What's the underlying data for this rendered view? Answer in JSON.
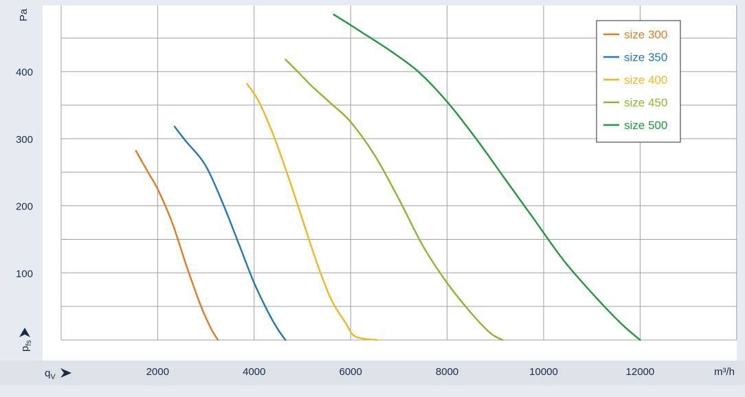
{
  "chart_data": {
    "type": "line",
    "xlabel": "q",
    "xlabel_sub": "V",
    "ylabel": "p",
    "ylabel_sub": "fs",
    "x_unit": "m³/h",
    "y_unit": "Pa",
    "xlim": [
      0,
      12000
    ],
    "ylim": [
      0,
      490
    ],
    "x_ticks": [
      2000,
      4000,
      6000,
      8000,
      10000,
      12000
    ],
    "y_ticks": [
      100,
      200,
      300,
      400
    ],
    "x_grid_step": 2000,
    "y_grid_step": 50,
    "grid": true,
    "legend_position": "top-right",
    "series": [
      {
        "name": "size 300",
        "color": "#e07b24",
        "points": [
          [
            1550,
            282
          ],
          [
            1800,
            250
          ],
          [
            2000,
            225
          ],
          [
            2300,
            175
          ],
          [
            2600,
            110
          ],
          [
            2900,
            50
          ],
          [
            3100,
            18
          ],
          [
            3250,
            0
          ]
        ]
      },
      {
        "name": "size 350",
        "color": "#1f77c0",
        "points": [
          [
            2350,
            318
          ],
          [
            2600,
            295
          ],
          [
            2900,
            270
          ],
          [
            3100,
            245
          ],
          [
            3400,
            195
          ],
          [
            3700,
            140
          ],
          [
            4000,
            85
          ],
          [
            4300,
            40
          ],
          [
            4500,
            15
          ],
          [
            4650,
            0
          ]
        ]
      },
      {
        "name": "size 400",
        "color": "#f5b51e",
        "points": [
          [
            3850,
            382
          ],
          [
            4100,
            355
          ],
          [
            4400,
            305
          ],
          [
            4700,
            245
          ],
          [
            5000,
            180
          ],
          [
            5300,
            115
          ],
          [
            5600,
            60
          ],
          [
            5900,
            25
          ],
          [
            6100,
            5
          ],
          [
            6550,
            0
          ]
        ]
      },
      {
        "name": "size 450",
        "color": "#8db52d",
        "points": [
          [
            4650,
            418
          ],
          [
            4900,
            400
          ],
          [
            5200,
            378
          ],
          [
            5600,
            352
          ],
          [
            6000,
            325
          ],
          [
            6500,
            275
          ],
          [
            7000,
            210
          ],
          [
            7500,
            140
          ],
          [
            8000,
            85
          ],
          [
            8500,
            40
          ],
          [
            8900,
            10
          ],
          [
            9150,
            0
          ]
        ]
      },
      {
        "name": "size 500",
        "color": "#1e9a3a",
        "points": [
          [
            5650,
            485
          ],
          [
            6200,
            460
          ],
          [
            6800,
            432
          ],
          [
            7400,
            400
          ],
          [
            8000,
            355
          ],
          [
            8600,
            300
          ],
          [
            9200,
            240
          ],
          [
            9800,
            180
          ],
          [
            10400,
            120
          ],
          [
            11000,
            70
          ],
          [
            11600,
            25
          ],
          [
            12000,
            0
          ]
        ]
      }
    ]
  }
}
